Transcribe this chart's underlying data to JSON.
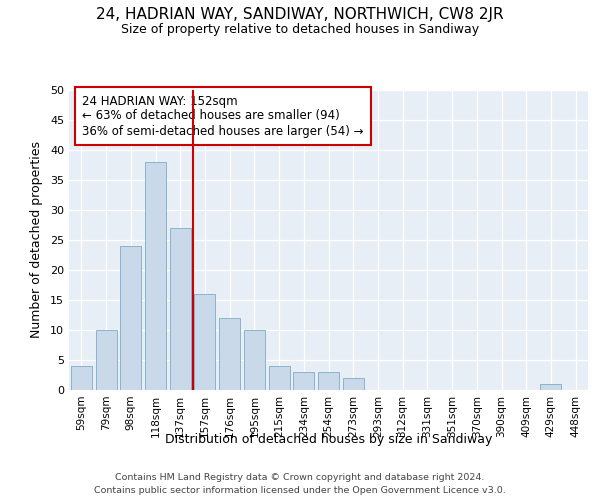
{
  "title": "24, HADRIAN WAY, SANDIWAY, NORTHWICH, CW8 2JR",
  "subtitle": "Size of property relative to detached houses in Sandiway",
  "xlabel": "Distribution of detached houses by size in Sandiway",
  "ylabel": "Number of detached properties",
  "bar_labels": [
    "59sqm",
    "79sqm",
    "98sqm",
    "118sqm",
    "137sqm",
    "157sqm",
    "176sqm",
    "195sqm",
    "215sqm",
    "234sqm",
    "254sqm",
    "273sqm",
    "293sqm",
    "312sqm",
    "331sqm",
    "351sqm",
    "370sqm",
    "390sqm",
    "409sqm",
    "429sqm",
    "448sqm"
  ],
  "bar_values": [
    4,
    10,
    24,
    38,
    27,
    16,
    12,
    10,
    4,
    3,
    3,
    2,
    0,
    0,
    0,
    0,
    0,
    0,
    0,
    1,
    0
  ],
  "bar_color": "#c9d9ea",
  "bar_edge_color": "#8ab4cc",
  "ylim": [
    0,
    50
  ],
  "yticks": [
    0,
    5,
    10,
    15,
    20,
    25,
    30,
    35,
    40,
    45,
    50
  ],
  "vline_color": "#cc0000",
  "vline_position": 4.5,
  "annotation_title": "24 HADRIAN WAY: 152sqm",
  "annotation_line2": "← 63% of detached houses are smaller (94)",
  "annotation_line3": "36% of semi-detached houses are larger (54) →",
  "annotation_box_edgecolor": "#cc0000",
  "plot_bg_color": "#e8eef5",
  "grid_color": "#ffffff",
  "footer_line1": "Contains HM Land Registry data © Crown copyright and database right 2024.",
  "footer_line2": "Contains public sector information licensed under the Open Government Licence v3.0."
}
